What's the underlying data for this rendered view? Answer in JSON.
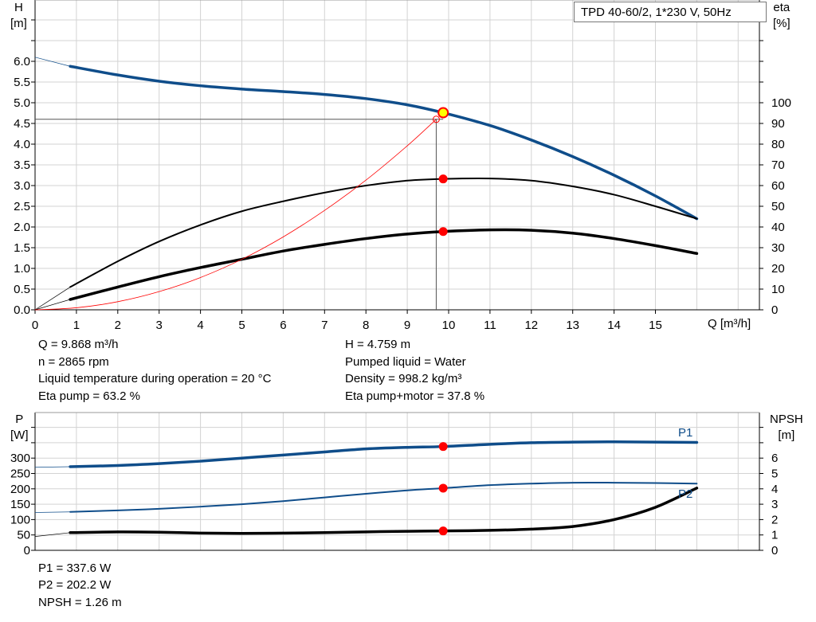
{
  "title": "TPD 40-60/2, 1*230 V, 50Hz",
  "colors": {
    "head": "#0f4d8a",
    "power": "#0f4d8a",
    "efficiency": "#000000",
    "npsh": "#000000",
    "system_curve": "#ff0000",
    "duty_point": "#ff0000",
    "grid": "#d3d3d3"
  },
  "chart_data": [
    {
      "type": "line",
      "xlabel": "Q [m³/h]",
      "ylabel_left": "H\n[m]",
      "ylabel_left_lines": [
        "H",
        "[m]"
      ],
      "ylabel_right_lines": [
        "eta",
        "[%]"
      ],
      "xlim": [
        0,
        17.5
      ],
      "ylim_left": [
        0,
        7.5
      ],
      "ylim_right": [
        0,
        150
      ],
      "x_ticks": [
        "0",
        "1",
        "2",
        "3",
        "4",
        "5",
        "6",
        "7",
        "8",
        "9",
        "10",
        "11",
        "12",
        "13",
        "14",
        "15"
      ],
      "y_left_ticks": [
        "0.0",
        "0.5",
        "1.0",
        "1.5",
        "2.0",
        "2.5",
        "3.0",
        "3.5",
        "4.0",
        "4.5",
        "5.0",
        "5.5",
        "6.0"
      ],
      "y_right_ticks": [
        "0",
        "10",
        "20",
        "30",
        "40",
        "50",
        "60",
        "70",
        "80",
        "90",
        "100"
      ],
      "grid": true,
      "series": [
        {
          "key": "H",
          "axis": "left",
          "x": [
            0.85,
            2,
            3,
            4,
            5,
            6,
            7,
            8,
            9,
            9.868,
            11,
            12,
            13,
            14,
            15,
            16
          ],
          "y": [
            5.88,
            5.67,
            5.52,
            5.41,
            5.33,
            5.27,
            5.2,
            5.1,
            4.95,
            4.759,
            4.45,
            4.1,
            3.7,
            3.25,
            2.75,
            2.2
          ],
          "extension_from": [
            0,
            6.1
          ]
        },
        {
          "key": "eta_pump",
          "axis": "right",
          "x": [
            0.85,
            2,
            3,
            4,
            5,
            6,
            7,
            8,
            9,
            9.868,
            11,
            12,
            13,
            14,
            15,
            16
          ],
          "y": [
            11,
            23.4,
            33,
            41,
            47.6,
            52.4,
            56.6,
            60,
            62.4,
            63.2,
            63.4,
            62.4,
            59.6,
            55.6,
            50,
            44
          ],
          "extension_from": [
            0,
            0
          ]
        },
        {
          "key": "eta_pump_motor",
          "axis": "right",
          "x": [
            0.85,
            2,
            3,
            4,
            5,
            6,
            7,
            8,
            9,
            9.868,
            11,
            12,
            13,
            14,
            15,
            16
          ],
          "y": [
            5,
            11,
            16,
            20.4,
            24.4,
            28.4,
            31.6,
            34.4,
            36.6,
            37.8,
            38.6,
            38.4,
            37,
            34.4,
            31,
            27.2
          ],
          "extension_from": [
            0,
            0
          ]
        },
        {
          "key": "system_curve",
          "axis": "left",
          "x": [
            0,
            1,
            2,
            3,
            4,
            5,
            6,
            7,
            8,
            9,
            9.7
          ],
          "y": [
            0,
            0.049,
            0.196,
            0.44,
            0.78,
            1.22,
            1.76,
            2.4,
            3.13,
            3.96,
            4.6
          ]
        }
      ],
      "duty_point": {
        "Q": 9.868,
        "H": 4.759,
        "eta_pump": 63.2,
        "eta_pump_motor": 37.8
      },
      "requested_point": {
        "Q": 9.7,
        "H": 4.6
      }
    },
    {
      "type": "line",
      "ylabel_left_lines": [
        "P",
        "[W]"
      ],
      "ylabel_right_lines": [
        "NPSH",
        "[m]"
      ],
      "xlim": [
        0,
        17.5
      ],
      "ylim_left": [
        0,
        450
      ],
      "ylim_right": [
        0,
        9
      ],
      "y_left_ticks": [
        "0",
        "50",
        "100",
        "150",
        "200",
        "250",
        "300"
      ],
      "y_right_ticks": [
        "0",
        "1",
        "2",
        "3",
        "4",
        "5",
        "6"
      ],
      "grid": true,
      "series": [
        {
          "key": "P1",
          "name": "P1",
          "axis": "left",
          "x": [
            0.85,
            2,
            3,
            4,
            5,
            6,
            7,
            8,
            9,
            9.868,
            11,
            12,
            13,
            14,
            15,
            16
          ],
          "y": [
            272,
            276,
            282,
            290,
            300,
            310,
            320,
            330,
            335,
            337.6,
            345,
            350,
            352,
            353,
            352,
            351
          ],
          "extension_from": [
            0,
            270
          ]
        },
        {
          "key": "P2",
          "name": "P2",
          "axis": "left",
          "x": [
            0.85,
            2,
            3,
            4,
            5,
            6,
            7,
            8,
            9,
            9.868,
            11,
            12,
            13,
            14,
            15,
            16
          ],
          "y": [
            125,
            130,
            135,
            142,
            150,
            160,
            172,
            184,
            195,
            202.2,
            212,
            217,
            220,
            220,
            219,
            217
          ],
          "extension_from": [
            0,
            123
          ]
        },
        {
          "key": "NPSH",
          "axis": "right",
          "x": [
            0.85,
            2,
            3,
            4,
            5,
            6,
            7,
            8,
            9,
            9.868,
            11,
            12,
            13,
            14,
            15,
            16
          ],
          "y": [
            1.15,
            1.2,
            1.18,
            1.12,
            1.1,
            1.12,
            1.15,
            1.2,
            1.24,
            1.26,
            1.3,
            1.38,
            1.55,
            2.0,
            2.8,
            4.05
          ],
          "extension_from": [
            0,
            0.9
          ]
        }
      ],
      "duty_point": {
        "Q": 9.868,
        "P1": 337.6,
        "P2": 202.2,
        "NPSH": 1.26
      }
    }
  ],
  "readout": {
    "q": "Q = 9.868 m³/h",
    "n": "n = 2865 rpm",
    "temp": "Liquid temperature during operation = 20 °C",
    "eta_pump": "Eta pump = 63.2 %",
    "h": "H = 4.759 m",
    "liquid": "Pumped liquid = Water",
    "density": "Density = 998.2 kg/m³",
    "eta_total": "Eta pump+motor = 37.8 %",
    "p1": "P1 = 337.6 W",
    "p2": "P2 = 202.2 W",
    "npsh": "NPSH = 1.26 m"
  }
}
